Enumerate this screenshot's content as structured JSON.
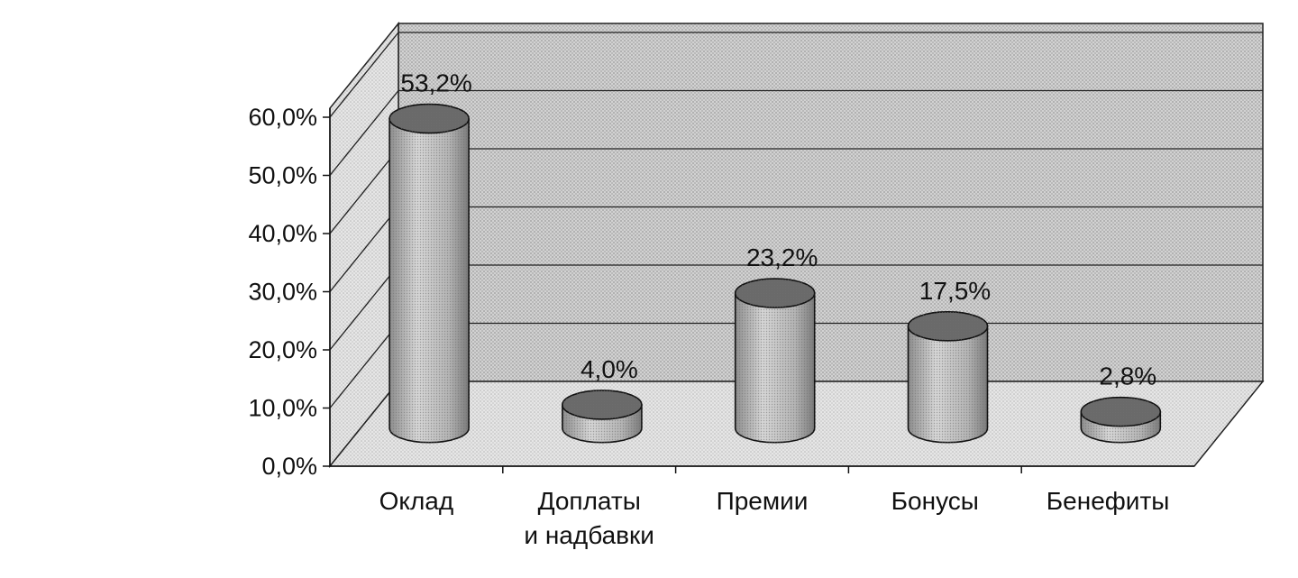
{
  "chart_data": {
    "type": "bar",
    "style": "3d-cylinder",
    "categories": [
      "Оклад",
      "Доплаты и надбавки",
      "Премии",
      "Бонусы",
      "Бенефиты"
    ],
    "category_lines": [
      [
        "Оклад"
      ],
      [
        "Доплаты",
        "и надбавки"
      ],
      [
        "Премии"
      ],
      [
        "Бонусы"
      ],
      [
        "Бенефиты"
      ]
    ],
    "values": [
      53.2,
      4.0,
      23.2,
      17.5,
      2.8
    ],
    "data_labels": [
      "53,2%",
      "4,0%",
      "23,2%",
      "17,5%",
      "2,8%"
    ],
    "ylim": [
      0,
      60
    ],
    "y_ticks": [
      0,
      10,
      20,
      30,
      40,
      50,
      60
    ],
    "y_tick_labels": [
      "0,0%",
      "10,0%",
      "20,0%",
      "30,0%",
      "40,0%",
      "50,0%",
      "60,0%"
    ],
    "grid": true,
    "legend": false,
    "title": "",
    "xlabel": "",
    "ylabel": ""
  }
}
